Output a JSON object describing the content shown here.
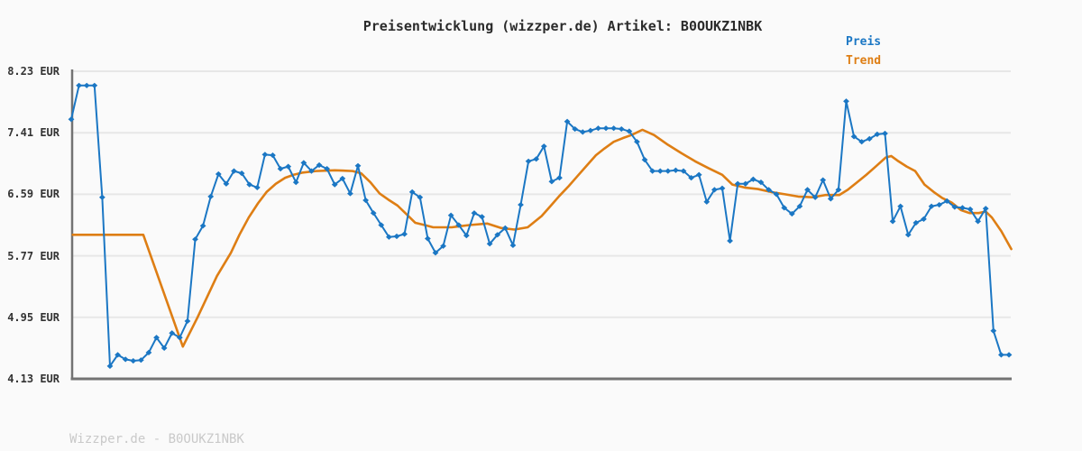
{
  "title": "Preisentwicklung (wizzper.de) Artikel: B0OUKZ1NBK",
  "legend": {
    "preis_label": "Preis",
    "trend_label": "Trend"
  },
  "footer": "Wizzper.de - B0OUKZ1NBK",
  "colors": {
    "preis": "#1b77c4",
    "trend": "#de7e14",
    "grid": "#e7e7e7",
    "axis": "#737373",
    "background": "#fafafa",
    "title_text": "#2b2b2b",
    "tick_text": "#333333",
    "footer_text": "#c9c9c9"
  },
  "chart_data": {
    "type": "line",
    "title": "Preisentwicklung (wizzper.de) Artikel: B0OUKZ1NBK",
    "xlabel": "",
    "ylabel": "EUR",
    "ylim": [
      4.13,
      8.23
    ],
    "y_tick_values": [
      8.23,
      7.41,
      6.59,
      5.77,
      4.95,
      4.13
    ],
    "y_tick_labels": [
      "8.23 EUR",
      "7.41 EUR",
      "6.59 EUR",
      "5.77 EUR",
      "4.95 EUR",
      "4.13 EUR"
    ],
    "x_tick_labels": [],
    "grid": "horizontal-only",
    "legend_position": "top-right",
    "series": [
      {
        "name": "Preis",
        "type": "line+diamond-markers",
        "color": "#1b77c4",
        "values": [
          7.59,
          8.04,
          8.04,
          8.04,
          6.55,
          4.3,
          4.45,
          4.39,
          4.37,
          4.38,
          4.48,
          4.68,
          4.54,
          4.74,
          4.68,
          4.9,
          5.99,
          6.17,
          6.56,
          6.86,
          6.73,
          6.9,
          6.87,
          6.72,
          6.68,
          7.12,
          7.11,
          6.93,
          6.96,
          6.75,
          7.01,
          6.9,
          6.98,
          6.93,
          6.72,
          6.8,
          6.6,
          6.97,
          6.51,
          6.34,
          6.18,
          6.02,
          6.03,
          6.06,
          6.62,
          6.55,
          6.0,
          5.81,
          5.9,
          6.31,
          6.18,
          6.04,
          6.34,
          6.29,
          5.93,
          6.05,
          6.14,
          5.91,
          6.45,
          7.03,
          7.06,
          7.23,
          6.76,
          6.81,
          7.56,
          7.46,
          7.42,
          7.44,
          7.47,
          7.47,
          7.47,
          7.46,
          7.43,
          7.29,
          7.05,
          6.9,
          6.9,
          6.9,
          6.91,
          6.9,
          6.81,
          6.85,
          6.49,
          6.65,
          6.67,
          5.97,
          6.73,
          6.73,
          6.79,
          6.75,
          6.65,
          6.59,
          6.41,
          6.33,
          6.43,
          6.65,
          6.55,
          6.78,
          6.53,
          6.65,
          7.83,
          7.36,
          7.29,
          7.33,
          7.39,
          7.4,
          6.23,
          6.43,
          6.05,
          6.21,
          6.26,
          6.43,
          6.45,
          6.5,
          6.42,
          6.41,
          6.39,
          6.23,
          6.4,
          4.77,
          4.45,
          4.45
        ]
      },
      {
        "name": "Trend",
        "type": "smooth-line",
        "color": "#de7e14",
        "points": [
          [
            0.2,
            6.05
          ],
          [
            9.3,
            6.05
          ],
          [
            14.4,
            4.56
          ],
          [
            16.3,
            4.95
          ],
          [
            18.8,
            5.5
          ],
          [
            20.6,
            5.81
          ],
          [
            21.7,
            6.05
          ],
          [
            22.9,
            6.28
          ],
          [
            24.1,
            6.47
          ],
          [
            25.2,
            6.62
          ],
          [
            26.4,
            6.73
          ],
          [
            27.6,
            6.81
          ],
          [
            28.7,
            6.85
          ],
          [
            29.9,
            6.88
          ],
          [
            31.6,
            6.9
          ],
          [
            34,
            6.91
          ],
          [
            36.3,
            6.9
          ],
          [
            37.4,
            6.87
          ],
          [
            38.6,
            6.75
          ],
          [
            39.8,
            6.6
          ],
          [
            40.9,
            6.52
          ],
          [
            42.1,
            6.44
          ],
          [
            43.3,
            6.32
          ],
          [
            44.4,
            6.21
          ],
          [
            45.6,
            6.18
          ],
          [
            46.7,
            6.15
          ],
          [
            49.1,
            6.15
          ],
          [
            51.4,
            6.18
          ],
          [
            53.7,
            6.2
          ],
          [
            55.5,
            6.14
          ],
          [
            57.2,
            6.12
          ],
          [
            58.9,
            6.15
          ],
          [
            60.7,
            6.3
          ],
          [
            61.9,
            6.44
          ],
          [
            63,
            6.57
          ],
          [
            64.2,
            6.7
          ],
          [
            65.3,
            6.83
          ],
          [
            66.5,
            6.97
          ],
          [
            67.7,
            7.11
          ],
          [
            68.8,
            7.2
          ],
          [
            70,
            7.29
          ],
          [
            71.2,
            7.34
          ],
          [
            72.3,
            7.38
          ],
          [
            73.7,
            7.45
          ],
          [
            75.2,
            7.38
          ],
          [
            77,
            7.25
          ],
          [
            78.7,
            7.14
          ],
          [
            80.5,
            7.03
          ],
          [
            82.2,
            6.94
          ],
          [
            84,
            6.85
          ],
          [
            85.3,
            6.72
          ],
          [
            86.9,
            6.68
          ],
          [
            88.6,
            6.66
          ],
          [
            90.3,
            6.62
          ],
          [
            92.1,
            6.59
          ],
          [
            93.8,
            6.56
          ],
          [
            95.6,
            6.55
          ],
          [
            97.3,
            6.58
          ],
          [
            99.1,
            6.58
          ],
          [
            100.2,
            6.65
          ],
          [
            101.4,
            6.75
          ],
          [
            102.6,
            6.85
          ],
          [
            103.7,
            6.95
          ],
          [
            105.1,
            7.08
          ],
          [
            105.8,
            7.1
          ],
          [
            106.6,
            7.04
          ],
          [
            107.8,
            6.96
          ],
          [
            108.9,
            6.9
          ],
          [
            110.1,
            6.72
          ],
          [
            111.3,
            6.62
          ],
          [
            112.4,
            6.54
          ],
          [
            113.6,
            6.48
          ],
          [
            114.8,
            6.38
          ],
          [
            115.9,
            6.34
          ],
          [
            117.1,
            6.34
          ],
          [
            118,
            6.36
          ],
          [
            118.8,
            6.28
          ],
          [
            120,
            6.1
          ],
          [
            121.3,
            5.86
          ]
        ]
      }
    ]
  }
}
